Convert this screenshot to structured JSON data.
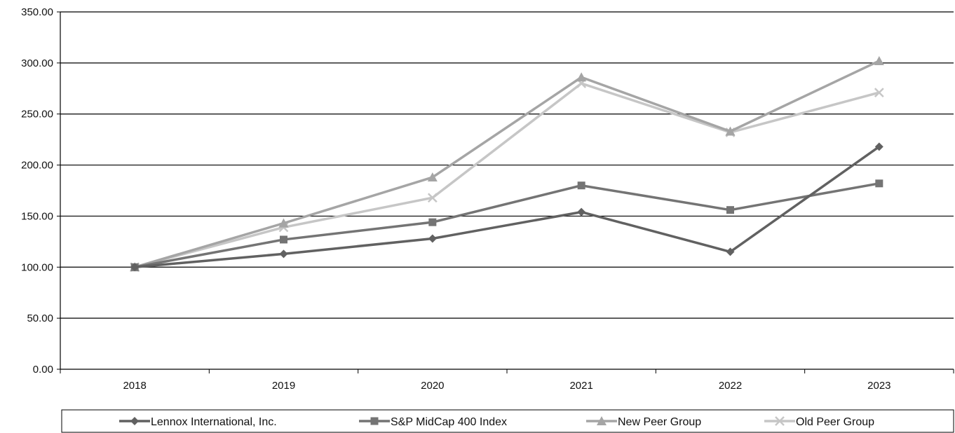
{
  "chart_data": {
    "type": "line",
    "title": "",
    "xlabel": "",
    "ylabel": "",
    "categories": [
      "2018",
      "2019",
      "2020",
      "2021",
      "2022",
      "2023"
    ],
    "ylim": [
      0,
      350
    ],
    "yticks": [
      0,
      50,
      100,
      150,
      200,
      250,
      300,
      350
    ],
    "ytick_labels": [
      "0.00",
      "50.00",
      "100.00",
      "150.00",
      "200.00",
      "250.00",
      "300.00",
      "350.00"
    ],
    "grid": "horizontal",
    "legend_position": "bottom",
    "series": [
      {
        "name": "Lennox International, Inc.",
        "marker": "diamond",
        "color": "#616161",
        "values": [
          100,
          113,
          128,
          154,
          115,
          218
        ]
      },
      {
        "name": "S&P MidCap 400 Index",
        "marker": "square",
        "color": "#747474",
        "values": [
          100,
          127,
          144,
          180,
          156,
          182
        ]
      },
      {
        "name": "New Peer Group",
        "marker": "triangle",
        "color": "#a5a5a5",
        "values": [
          100,
          143,
          188,
          286,
          233,
          302
        ]
      },
      {
        "name": "Old Peer Group",
        "marker": "x",
        "color": "#c6c6c6",
        "values": [
          100,
          139,
          168,
          280,
          232,
          271
        ]
      }
    ]
  }
}
